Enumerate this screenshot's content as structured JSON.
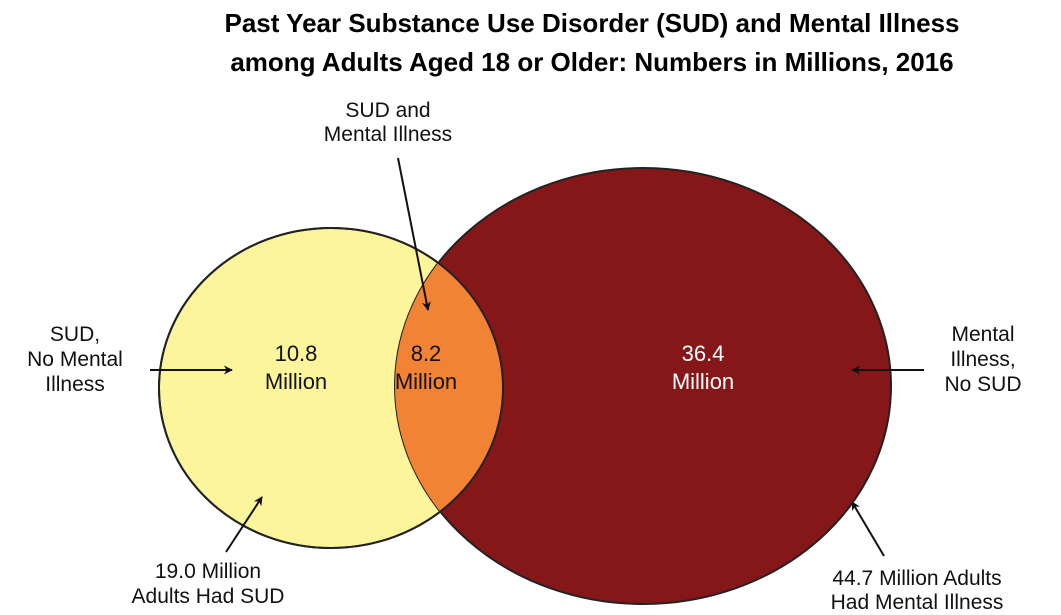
{
  "title": {
    "line1": "Past Year Substance Use Disorder (SUD) and Mental Illness",
    "line2": "among Adults Aged 18 or Older: Numbers in Millions, 2016"
  },
  "colors": {
    "sud_only": "#fdf59b",
    "overlap": "#f28335",
    "mental_only": "#851719",
    "outline": "#222222"
  },
  "regions": {
    "sud_only": {
      "value": "10.8",
      "unit": "Million",
      "value_millions": 10.8
    },
    "overlap": {
      "value": "8.2",
      "unit": "Million",
      "value_millions": 8.2
    },
    "mental_only": {
      "value": "36.4",
      "unit": "Million",
      "value_millions": 36.4
    }
  },
  "callouts": {
    "overlap": [
      "SUD and",
      "Mental Illness"
    ],
    "sud_only": [
      "SUD,",
      "No Mental",
      "Illness"
    ],
    "mental_only": [
      "Mental",
      "Illness,",
      "No SUD"
    ],
    "sud_total": [
      "19.0 Million",
      "Adults Had SUD"
    ],
    "mental_total": [
      "44.7 Million Adults",
      "Had Mental Illness"
    ]
  }
}
